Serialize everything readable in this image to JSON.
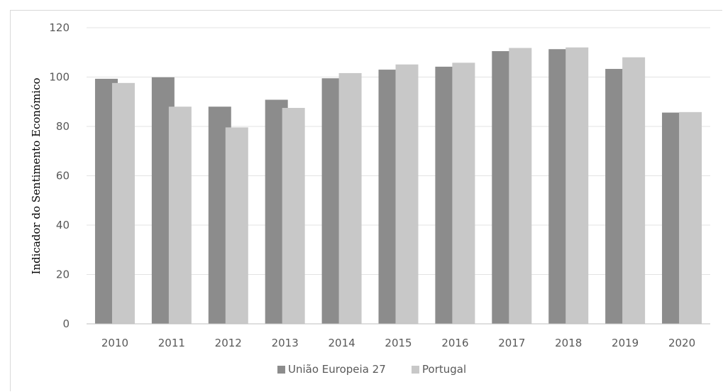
{
  "chart_data": {
    "type": "bar",
    "title": "",
    "xlabel": "",
    "ylabel": "Indicador do Sentimento Económico",
    "ylim": [
      0,
      120
    ],
    "yticks": [
      0,
      20,
      40,
      60,
      80,
      100,
      120
    ],
    "grid": true,
    "legend_position": "bottom",
    "categories": [
      "2010",
      "2011",
      "2012",
      "2013",
      "2014",
      "2015",
      "2016",
      "2017",
      "2018",
      "2019",
      "2020"
    ],
    "series": [
      {
        "name": "União Europeia 27",
        "color": "#8c8c8c",
        "values": [
          99.3,
          99.9,
          88.0,
          90.8,
          99.5,
          103.0,
          104.2,
          110.5,
          111.3,
          103.3,
          85.6
        ]
      },
      {
        "name": "Portugal",
        "color": "#c8c8c8",
        "values": [
          97.6,
          88.0,
          79.6,
          87.5,
          101.6,
          105.1,
          105.8,
          111.8,
          112.0,
          108.0,
          85.8
        ]
      }
    ]
  }
}
